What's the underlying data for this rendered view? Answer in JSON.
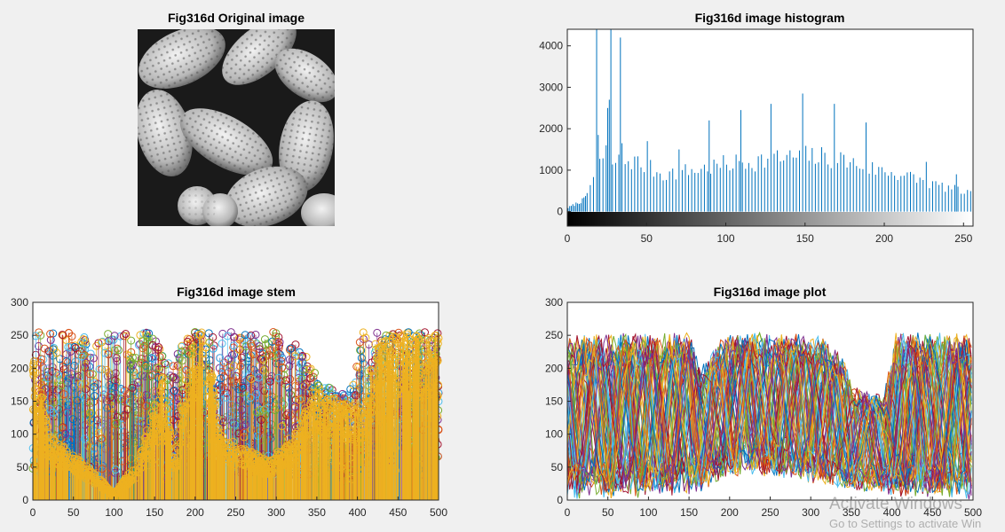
{
  "window": {
    "watermark_title": "Activate Windows",
    "watermark_subtitle": "Go to Settings to activate Win"
  },
  "colors": {
    "background": "#f0f0f0",
    "axes_background": "#ffffff",
    "matlab_blue": "#0072bd",
    "series_palette": [
      "#0072bd",
      "#d95319",
      "#edb120",
      "#7e2f8e",
      "#77ac30",
      "#4dbeee",
      "#a2142f"
    ]
  },
  "chart_data": [
    {
      "type": "image",
      "title": "Fig316d Original image",
      "colormap": "gray",
      "content": "grayscale micrograph of pollen grains"
    },
    {
      "type": "bar",
      "title": "Fig316d image histogram",
      "xlabel": "",
      "ylabel": "",
      "xlim": [
        0,
        256
      ],
      "ylim": [
        -350,
        4400
      ],
      "xticks": [
        0,
        50,
        100,
        150,
        200,
        250
      ],
      "yticks": [
        0,
        1000,
        2000,
        3000,
        4000
      ],
      "colorbar": "gray",
      "grid": false,
      "peaks": [
        {
          "x": 18,
          "y": 4400
        },
        {
          "x": 19,
          "y": 1850
        },
        {
          "x": 24,
          "y": 1600
        },
        {
          "x": 25,
          "y": 2500
        },
        {
          "x": 26,
          "y": 2700
        },
        {
          "x": 27,
          "y": 4400
        },
        {
          "x": 33,
          "y": 4200
        },
        {
          "x": 34,
          "y": 1650
        },
        {
          "x": 50,
          "y": 1700
        },
        {
          "x": 70,
          "y": 1500
        },
        {
          "x": 89,
          "y": 2200
        },
        {
          "x": 109,
          "y": 2450
        },
        {
          "x": 128,
          "y": 2600
        },
        {
          "x": 148,
          "y": 2850
        },
        {
          "x": 168,
          "y": 2600
        },
        {
          "x": 188,
          "y": 2150
        },
        {
          "x": 226,
          "y": 1200
        },
        {
          "x": 245,
          "y": 900
        }
      ],
      "envelope": [
        {
          "x": 0,
          "y": 100
        },
        {
          "x": 10,
          "y": 300
        },
        {
          "x": 20,
          "y": 1200
        },
        {
          "x": 40,
          "y": 1300
        },
        {
          "x": 60,
          "y": 950
        },
        {
          "x": 80,
          "y": 1050
        },
        {
          "x": 100,
          "y": 1200
        },
        {
          "x": 120,
          "y": 1300
        },
        {
          "x": 150,
          "y": 1400
        },
        {
          "x": 170,
          "y": 1350
        },
        {
          "x": 190,
          "y": 1100
        },
        {
          "x": 210,
          "y": 950
        },
        {
          "x": 230,
          "y": 700
        },
        {
          "x": 255,
          "y": 450
        }
      ]
    },
    {
      "type": "stem",
      "title": "Fig316d image stem",
      "xlabel": "",
      "ylabel": "",
      "xlim": [
        0,
        500
      ],
      "ylim": [
        0,
        300
      ],
      "xticks": [
        0,
        50,
        100,
        150,
        200,
        250,
        300,
        350,
        400,
        450,
        500
      ],
      "yticks": [
        0,
        50,
        100,
        150,
        200,
        250,
        300
      ],
      "marker": "circle",
      "front_series_profile": [
        {
          "x": 0,
          "y": 230
        },
        {
          "x": 20,
          "y": 100
        },
        {
          "x": 60,
          "y": 60
        },
        {
          "x": 100,
          "y": 10
        },
        {
          "x": 130,
          "y": 60
        },
        {
          "x": 160,
          "y": 190
        },
        {
          "x": 175,
          "y": 60
        },
        {
          "x": 190,
          "y": 230
        },
        {
          "x": 200,
          "y": 255
        },
        {
          "x": 215,
          "y": 255
        },
        {
          "x": 230,
          "y": 100
        },
        {
          "x": 260,
          "y": 80
        },
        {
          "x": 290,
          "y": 60
        },
        {
          "x": 320,
          "y": 90
        },
        {
          "x": 345,
          "y": 180
        },
        {
          "x": 360,
          "y": 160
        },
        {
          "x": 380,
          "y": 150
        },
        {
          "x": 410,
          "y": 140
        },
        {
          "x": 420,
          "y": 250
        },
        {
          "x": 480,
          "y": 255
        },
        {
          "x": 500,
          "y": 255
        }
      ]
    },
    {
      "type": "line",
      "title": "Fig316d image plot",
      "xlabel": "",
      "ylabel": "",
      "xlim": [
        0,
        500
      ],
      "ylim": [
        0,
        300
      ],
      "xticks": [
        0,
        50,
        100,
        150,
        200,
        250,
        300,
        350,
        400,
        450,
        500
      ],
      "yticks": [
        0,
        50,
        100,
        150,
        200,
        250,
        300
      ],
      "upper_envelope": [
        {
          "x": 0,
          "y": 255
        },
        {
          "x": 150,
          "y": 255
        },
        {
          "x": 165,
          "y": 205
        },
        {
          "x": 180,
          "y": 230
        },
        {
          "x": 195,
          "y": 255
        },
        {
          "x": 310,
          "y": 255
        },
        {
          "x": 340,
          "y": 215
        },
        {
          "x": 355,
          "y": 175
        },
        {
          "x": 390,
          "y": 160
        },
        {
          "x": 405,
          "y": 255
        },
        {
          "x": 500,
          "y": 255
        }
      ],
      "lower_envelope": [
        {
          "x": 0,
          "y": 0
        },
        {
          "x": 140,
          "y": 5
        },
        {
          "x": 170,
          "y": 15
        },
        {
          "x": 200,
          "y": 35
        },
        {
          "x": 250,
          "y": 35
        },
        {
          "x": 300,
          "y": 25
        },
        {
          "x": 350,
          "y": 15
        },
        {
          "x": 400,
          "y": 5
        },
        {
          "x": 500,
          "y": 0
        }
      ]
    }
  ]
}
